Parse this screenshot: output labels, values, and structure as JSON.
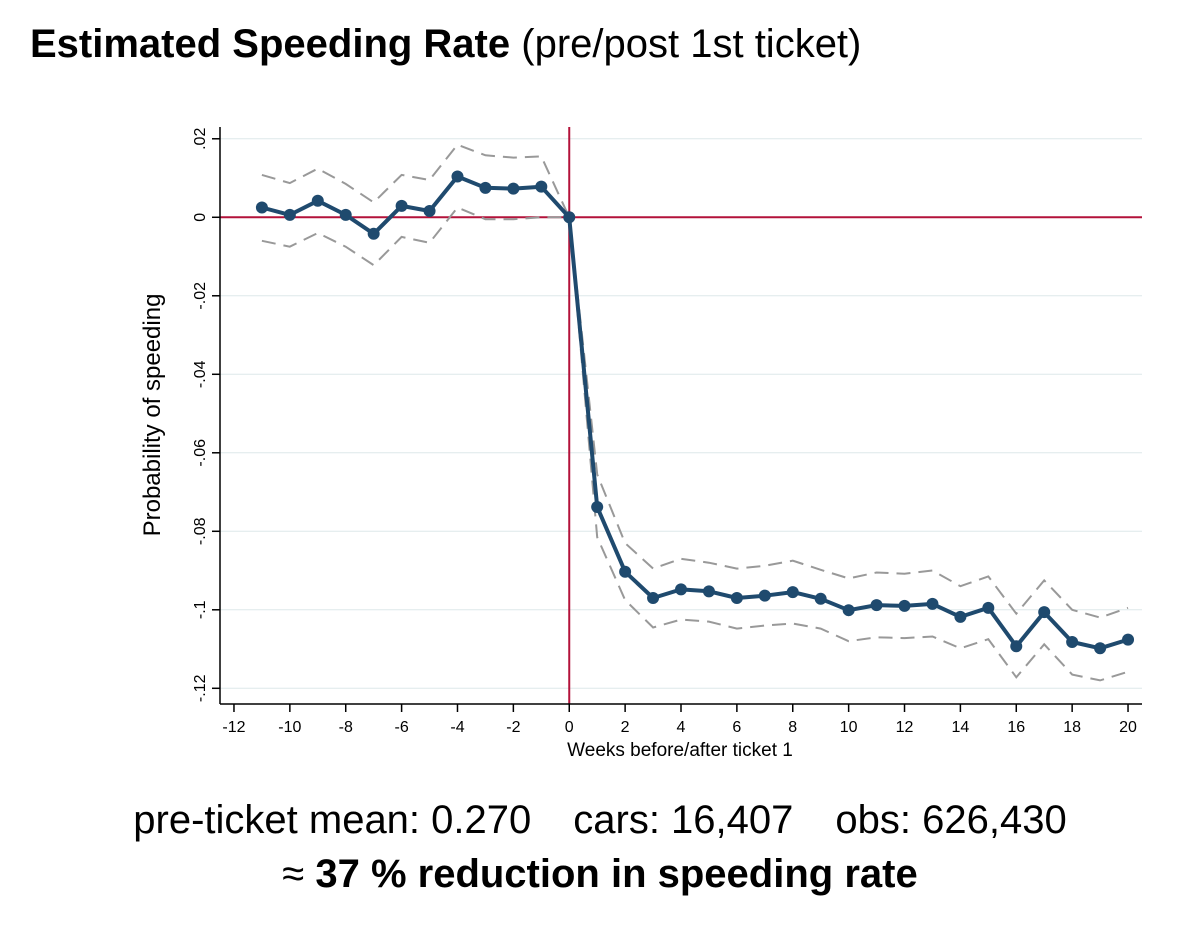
{
  "header": {
    "title_bold": "Estimated Speeding Rate",
    "title_rest": "(pre/post 1st ticket)"
  },
  "footer": {
    "pre_ticket_mean": "pre-ticket mean: 0.270",
    "cars": "cars: 16,407",
    "obs": "obs: 626,430",
    "approx_symbol": "≈",
    "conclusion": "37 % reduction in speeding rate"
  },
  "colors": {
    "series": "#1f4a6e",
    "ci": "#999999",
    "reference": "#b3123a",
    "grid": "#dde8ea"
  },
  "chart_data": {
    "type": "line",
    "title": "Estimated Speeding Rate (pre/post 1st ticket)",
    "xlabel": "Weeks before/after ticket 1",
    "ylabel": "Probability of speeding",
    "xlim": [
      -12.5,
      20.5
    ],
    "ylim": [
      -0.124,
      0.023
    ],
    "xticks": [
      -12,
      -10,
      -8,
      -6,
      -4,
      -2,
      0,
      2,
      4,
      6,
      8,
      10,
      12,
      14,
      16,
      18,
      20
    ],
    "xtick_labels": [
      "-12",
      "-10",
      "-8",
      "-6",
      "-4",
      "-2",
      "0",
      "2",
      "4",
      "6",
      "8",
      "10",
      "12",
      "14",
      "16",
      "18",
      "20"
    ],
    "yticks": [
      0.02,
      0,
      -0.02,
      -0.04,
      -0.06,
      -0.08,
      -0.1,
      -0.12
    ],
    "ytick_labels": [
      ".02",
      "0",
      "-.02",
      "-.04",
      "-.06",
      "-.08",
      "-.1",
      "-.12"
    ],
    "grid": true,
    "reference_lines": {
      "x": 0,
      "y": 0
    },
    "x": [
      -11,
      -10,
      -9,
      -8,
      -7,
      -6,
      -5,
      -4,
      -3,
      -2,
      -1,
      0,
      1,
      2,
      3,
      4,
      5,
      6,
      7,
      8,
      9,
      10,
      11,
      12,
      13,
      14,
      15,
      16,
      17,
      18,
      19,
      20
    ],
    "series": [
      {
        "name": "Estimate",
        "style": "solid-markers",
        "values": [
          0.0025,
          0.0006,
          0.0042,
          0.0006,
          -0.0042,
          0.0029,
          0.0016,
          0.0104,
          0.0075,
          0.0073,
          0.0078,
          0.0,
          -0.0738,
          -0.0903,
          -0.097,
          -0.0948,
          -0.0953,
          -0.097,
          -0.0964,
          -0.0955,
          -0.0972,
          -0.1001,
          -0.0988,
          -0.099,
          -0.0985,
          -0.1018,
          -0.0995,
          -0.1093,
          -0.1006,
          -0.1082,
          -0.1098,
          -0.1076
        ]
      },
      {
        "name": "Upper 95% CI",
        "style": "dashed",
        "values": [
          0.0108,
          0.0087,
          0.0124,
          0.0085,
          0.0038,
          0.0108,
          0.0095,
          0.0185,
          0.0158,
          0.0152,
          0.0155,
          0.0,
          -0.0655,
          -0.083,
          -0.0895,
          -0.087,
          -0.088,
          -0.0895,
          -0.0888,
          -0.0875,
          -0.0898,
          -0.092,
          -0.0905,
          -0.0908,
          -0.09,
          -0.094,
          -0.0915,
          -0.101,
          -0.0925,
          -0.1,
          -0.102,
          -0.0995
        ]
      },
      {
        "name": "Lower 95% CI",
        "style": "dashed",
        "values": [
          -0.006,
          -0.0075,
          -0.004,
          -0.0075,
          -0.0122,
          -0.005,
          -0.0065,
          0.0025,
          -0.0005,
          -0.0005,
          0.0,
          0.0,
          -0.0815,
          -0.0975,
          -0.1045,
          -0.1025,
          -0.103,
          -0.1048,
          -0.104,
          -0.1035,
          -0.1048,
          -0.108,
          -0.107,
          -0.1072,
          -0.1068,
          -0.1098,
          -0.1075,
          -0.1172,
          -0.1088,
          -0.1165,
          -0.118,
          -0.1158
        ]
      }
    ]
  }
}
